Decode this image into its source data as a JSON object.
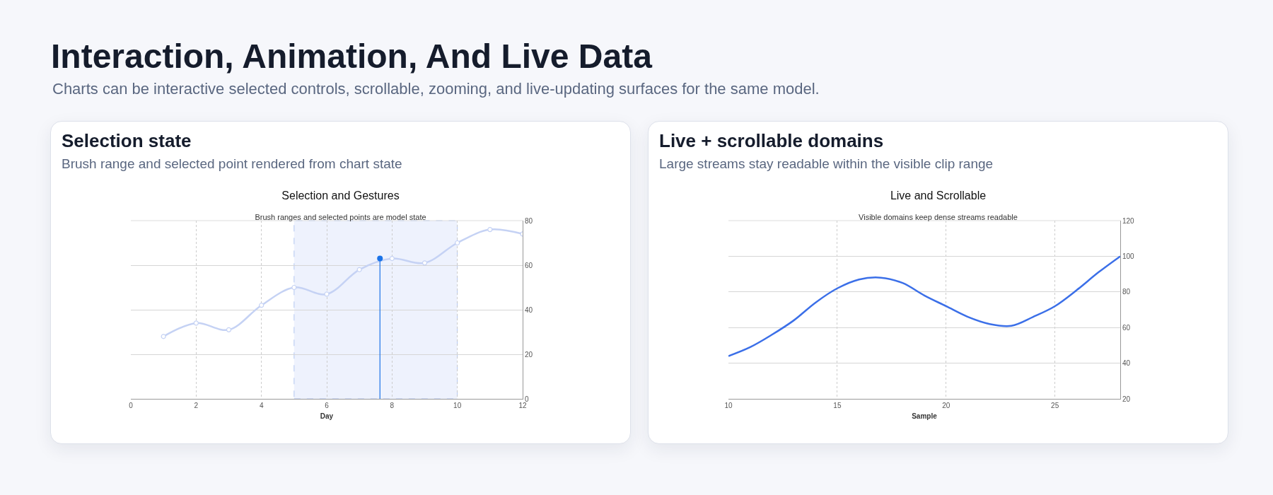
{
  "chart_data": [
    {
      "type": "other",
      "title": "Interaction, Animation, And Live Data",
      "subtitle": "Charts can be interactive selected controls, scrollable, zooming, and live-updating surfaces for the same model."
    },
    {
      "type": "line",
      "title": "Selection and Gestures",
      "subtitle": "Brush ranges and selected points are model state",
      "xlabel": "Day",
      "annotations": [
        "Selection state",
        "Brush range and selected point rendered from chart state"
      ],
      "series": [
        {
          "color": "#c5d2f4",
          "x": [
            1,
            2,
            3,
            4,
            5,
            6,
            7,
            8,
            9,
            10,
            11,
            12
          ],
          "values": [
            28,
            34,
            31,
            42,
            50,
            47,
            58,
            63,
            61,
            70,
            76,
            74
          ]
        },
        {
          "type": "lollipop",
          "color": "#1a73e8",
          "x": [
            7.63
          ],
          "values": [
            63
          ]
        }
      ],
      "bands": [
        {
          "axis": "x",
          "from": 5,
          "to": 10,
          "color": "#eef2fd"
        }
      ],
      "xlim": [
        0,
        12
      ],
      "xticks": [
        0,
        2,
        4,
        6,
        8,
        10,
        12
      ],
      "ylim": [
        0,
        80
      ],
      "yticks": [
        0,
        20,
        40,
        60,
        80
      ],
      "grid": true,
      "marker": "circle"
    },
    {
      "type": "line",
      "title": "Live and Scrollable",
      "subtitle": "Visible domains keep dense streams readable",
      "xlabel": "Sample",
      "annotations": [
        "Live + scrollable domains",
        "Large streams stay readable within the visible clip range"
      ],
      "series": [
        {
          "color": "#3b6fe8",
          "x": [
            10,
            11,
            12,
            13,
            14,
            15,
            16,
            17,
            18,
            19,
            20,
            21,
            22,
            23,
            24,
            25,
            26,
            27,
            28
          ],
          "values": [
            44,
            49,
            56,
            64,
            74,
            82,
            87,
            88,
            85,
            78,
            72,
            66,
            62,
            61,
            66,
            72,
            81,
            91,
            100
          ]
        }
      ],
      "xlim": [
        10,
        28
      ],
      "xticks": [
        10,
        15,
        20,
        25
      ],
      "ylim": [
        20,
        120
      ],
      "yticks": [
        20,
        40,
        60,
        80,
        100,
        120
      ],
      "grid": true
    }
  ]
}
